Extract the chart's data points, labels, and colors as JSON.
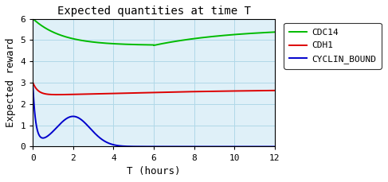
{
  "title": "Expected quantities at time T",
  "xlabel": "T (hours)",
  "ylabel": "Expected reward",
  "xlim": [
    0,
    12
  ],
  "ylim": [
    0,
    6
  ],
  "yticks": [
    0,
    1,
    2,
    3,
    4,
    5,
    6
  ],
  "xticks": [
    0,
    2,
    4,
    6,
    8,
    10,
    12
  ],
  "grid_color": "#b0d8e8",
  "background_color": "#dff0f8",
  "legend_labels": [
    "CDC14",
    "CDH1",
    "CYCLIN_BOUND"
  ],
  "line_colors": [
    "#00bb00",
    "#dd0000",
    "#0000cc"
  ],
  "line_width": 1.4,
  "figsize": [
    4.87,
    2.29
  ],
  "dpi": 100,
  "title_fontsize": 10,
  "axis_fontsize": 9,
  "tick_fontsize": 8
}
